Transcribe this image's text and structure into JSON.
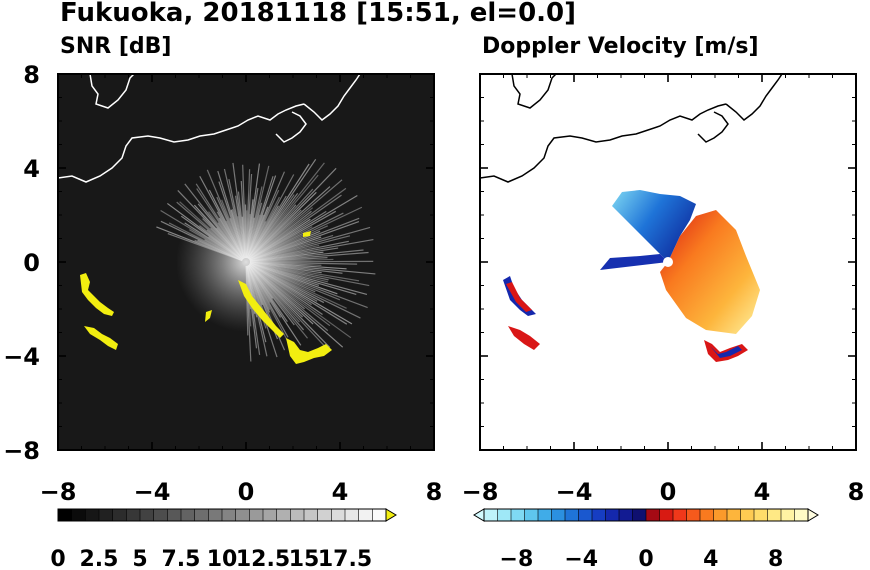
{
  "title": "Fukuoka, 20181118 [15:51, el=0.0]",
  "colors": {
    "snr_background": "#181818",
    "snr_echo": "#f2ee10",
    "coastline_left": "#ffffff",
    "coastline_right": "#000000",
    "doppler_echo_edge": "#d91616"
  },
  "chart_data": [
    {
      "type": "heatmap",
      "title": "SNR [dB]",
      "xlim": [
        -8,
        8
      ],
      "ylim": [
        -8,
        8
      ],
      "x_ticks": [
        "−8",
        "−4",
        "0",
        "4",
        "8"
      ],
      "y_ticks": [
        "8",
        "4",
        "0",
        "−4",
        "−8"
      ],
      "colorbar": {
        "range": [
          0,
          20
        ],
        "tick_labels": [
          "0",
          "2.5",
          "5",
          "7.5",
          "10",
          "12.5",
          "15",
          "17.5"
        ],
        "levels": [
          "#000000",
          "#0b0b0b",
          "#161616",
          "#212121",
          "#2c2c2c",
          "#373737",
          "#424242",
          "#4d4d4d",
          "#585858",
          "#636363",
          "#6e6e6e",
          "#797979",
          "#848484",
          "#8f8f8f",
          "#9a9a9a",
          "#a5a5a5",
          "#b0b0b0",
          "#bbbbbb",
          "#c6c6c6",
          "#d1d1d1",
          "#dcdcdc",
          "#e7e7e7",
          "#f2f2f2",
          "#fafafa"
        ],
        "extend_color": "#f2ee10"
      }
    },
    {
      "type": "heatmap",
      "title": "Doppler Velocity [m/s]",
      "xlim": [
        -8,
        8
      ],
      "ylim": [
        -8,
        8
      ],
      "x_ticks": [
        "−8",
        "−4",
        "0",
        "4",
        "8"
      ],
      "colorbar": {
        "range": [
          -10,
          10
        ],
        "tick_labels": [
          "−8",
          "−4",
          "0",
          "4",
          "8"
        ],
        "levels": [
          "#bff3fb",
          "#9fe8f7",
          "#7fd9f3",
          "#5fc6ee",
          "#40ace8",
          "#2b90e0",
          "#1f74d8",
          "#1a58cf",
          "#163dc2",
          "#1428ad",
          "#121b92",
          "#0f1070",
          "#a50a14",
          "#d81a12",
          "#f0381a",
          "#f65a1c",
          "#f97a1f",
          "#fb9a2b",
          "#fdb53c",
          "#fecb52",
          "#ffdc6a",
          "#ffe985",
          "#fff3a3",
          "#fffbc5"
        ],
        "extend_low_color": "#d4fbff",
        "extend_high_color": "#fffde0"
      }
    }
  ]
}
